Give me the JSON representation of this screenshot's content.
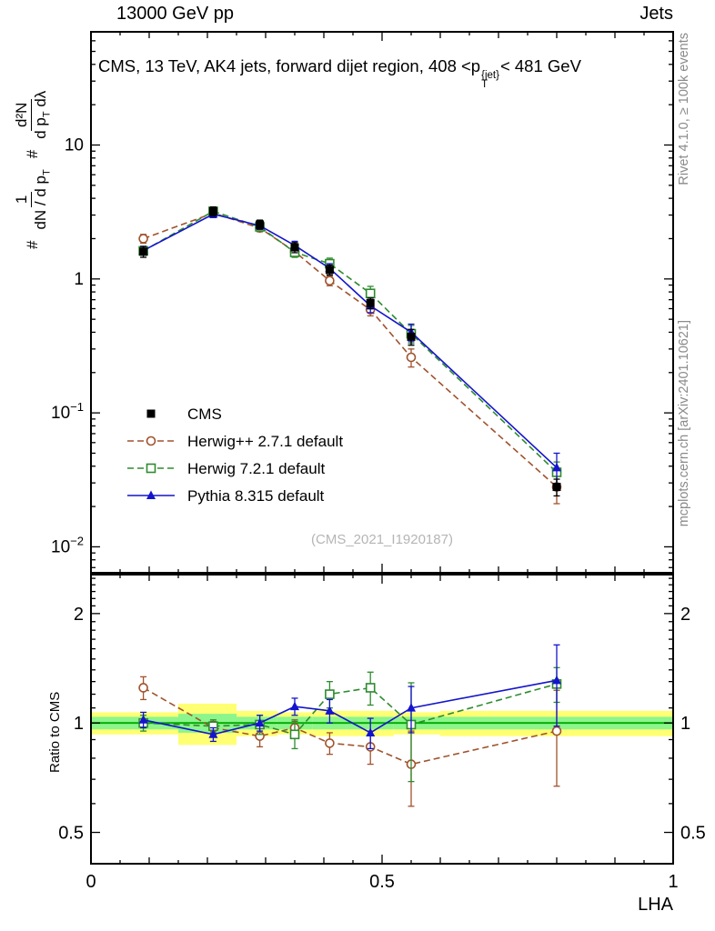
{
  "header": {
    "left": "13000 GeV pp",
    "right": "Jets"
  },
  "title": {
    "a": "CMS, 13 TeV, AK4 jets, forward dijet region, 408 <p",
    "sup": "{jet}",
    "sub": "T",
    "b": "< 481 GeV"
  },
  "ylabel": {
    "hash1": "#",
    "num1": "1",
    "den1_a": "dN / d p",
    "den1_sub": "T",
    "hash2": "#",
    "num2": "d²N",
    "den2_a": "d p",
    "den2_sub": "T",
    "den2_b": " dλ"
  },
  "right_labels": {
    "top": "Rivet 4.1.0, ≥ 100k events",
    "bottom": "mcplots.cern.ch [arXiv:2401.10621]"
  },
  "watermark": "(CMS_2021_I1920187)",
  "chart_data": {
    "type": "line",
    "xlabel": "LHA",
    "xlim": [
      0,
      1
    ],
    "x_ticks": [
      0,
      0.5,
      1
    ],
    "x_tick_labels": [
      "0",
      "0.5",
      "1"
    ],
    "x": [
      0.09,
      0.21,
      0.29,
      0.35,
      0.41,
      0.48,
      0.55,
      0.8
    ],
    "bin_edges": [
      0,
      0.15,
      0.25,
      0.32,
      0.38,
      0.44,
      0.52,
      0.6,
      1
    ],
    "main": {
      "yscale": "log",
      "ylim": [
        0.0064,
        70
      ],
      "y_ticks": [
        10,
        1,
        0.1,
        0.01
      ],
      "y_tick_labels": [
        "10",
        "1",
        {
          "b": "10",
          "e": "−1"
        },
        {
          "b": "10",
          "e": "−2"
        }
      ],
      "series": [
        {
          "name": "CMS",
          "color": "#000000",
          "marker": "square-filled",
          "linestyle": "none",
          "values": [
            1.6,
            3.2,
            2.55,
            1.72,
            1.17,
            0.66,
            0.37,
            0.028
          ],
          "errors": [
            0.15,
            0.25,
            0.2,
            0.15,
            0.1,
            0.06,
            0.05,
            0.004
          ]
        },
        {
          "name": "Herwig++ 2.7.1 default",
          "color": "#a0522d",
          "marker": "circle-open",
          "linestyle": "dashed",
          "values": [
            2.0,
            3.1,
            2.4,
            1.6,
            0.97,
            0.59,
            0.26,
            0.028
          ],
          "errors": [
            0.15,
            0.2,
            0.15,
            0.12,
            0.08,
            0.06,
            0.04,
            0.007
          ]
        },
        {
          "name": "Herwig 7.2.1 default",
          "color": "#2e8b2e",
          "marker": "square-open",
          "linestyle": "dashed",
          "values": [
            1.62,
            3.2,
            2.45,
            1.58,
            1.3,
            0.78,
            0.39,
            0.036
          ],
          "errors": [
            0.12,
            0.2,
            0.16,
            0.13,
            0.13,
            0.1,
            0.06,
            0.007
          ]
        },
        {
          "name": "Pythia 8.315 default",
          "color": "#1414cc",
          "marker": "triangle-filled",
          "linestyle": "solid",
          "values": [
            1.63,
            3.05,
            2.5,
            1.78,
            1.2,
            0.63,
            0.4,
            0.039
          ],
          "errors": [
            0.12,
            0.18,
            0.15,
            0.13,
            0.1,
            0.07,
            0.06,
            0.011
          ]
        }
      ]
    },
    "ratio": {
      "ylabel": "Ratio to CMS",
      "yscale": "log",
      "ylim": [
        0.41,
        2.56
      ],
      "y_ticks": [
        0.5,
        1,
        2
      ],
      "y_tick_labels": [
        "0.5",
        "1",
        "2"
      ],
      "reference_line_color": "#00aa00",
      "bands": {
        "yellow": {
          "color": "#ffff73",
          "lo": [
            0.93,
            0.87,
            0.92,
            0.93,
            0.92,
            0.92,
            0.93,
            0.92
          ],
          "hi": [
            1.07,
            1.13,
            1.08,
            1.07,
            1.08,
            1.08,
            1.07,
            1.08
          ]
        },
        "green": {
          "color": "#8cf58c",
          "lo": [
            0.96,
            0.94,
            0.96,
            0.96,
            0.96,
            0.96,
            0.96,
            0.96
          ],
          "hi": [
            1.04,
            1.06,
            1.04,
            1.04,
            1.04,
            1.04,
            1.04,
            1.04
          ]
        }
      },
      "series": [
        {
          "name": "Herwig++ 2.7.1 default",
          "color": "#a0522d",
          "marker": "circle-open",
          "linestyle": "dashed",
          "values": [
            1.25,
            0.97,
            0.92,
            0.97,
            0.88,
            0.86,
            0.77,
            0.95
          ],
          "errors": [
            0.09,
            0.04,
            0.06,
            0.05,
            0.06,
            0.09,
            0.18,
            0.28
          ]
        },
        {
          "name": "Herwig 7.2.1 default",
          "color": "#2e8b2e",
          "marker": "square-open",
          "linestyle": "dashed",
          "values": [
            1.0,
            0.98,
            0.99,
            0.93,
            1.2,
            1.25,
            0.99,
            1.28
          ],
          "errors": [
            0.05,
            0.04,
            0.06,
            0.08,
            0.1,
            0.13,
            0.3,
            0.14
          ]
        },
        {
          "name": "Pythia 8.315 default",
          "color": "#1414cc",
          "marker": "triangle-filled",
          "linestyle": "solid",
          "values": [
            1.02,
            0.93,
            1.0,
            1.11,
            1.08,
            0.94,
            1.1,
            1.31
          ],
          "errors": [
            0.05,
            0.04,
            0.05,
            0.06,
            0.08,
            0.09,
            0.16,
            0.33
          ]
        }
      ]
    }
  }
}
